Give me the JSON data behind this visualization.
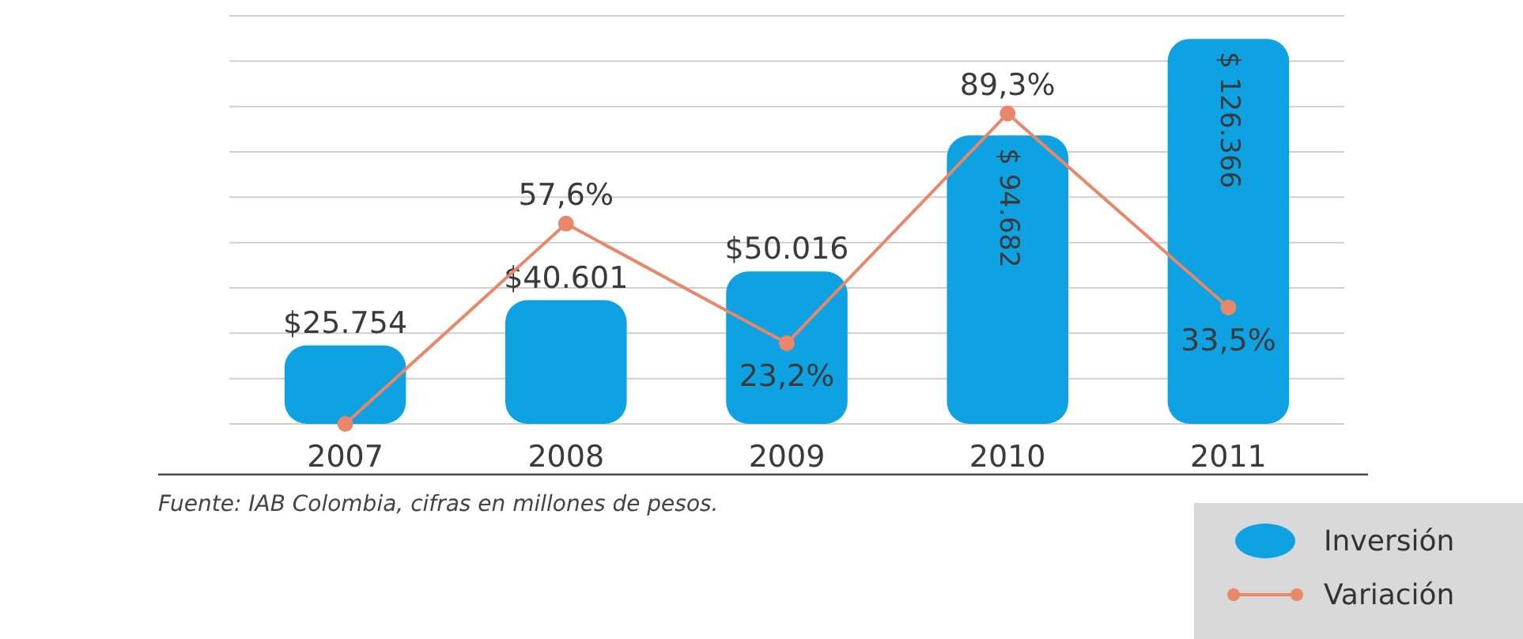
{
  "chart_data": {
    "type": "bar",
    "categories": [
      "2007",
      "2008",
      "2009",
      "2010",
      "2011"
    ],
    "series": [
      {
        "name": "Inversión",
        "color": "#0ea2e2",
        "values": [
          25754,
          40601,
          50016,
          94682,
          126366
        ],
        "value_labels": [
          "$25.754",
          "$40.601",
          "$50.016",
          "$ 94.682",
          "$ 126.366"
        ]
      },
      {
        "name": "Variación",
        "type": "line",
        "axis": "y2",
        "color": "#e8876a",
        "values": [
          0,
          57.6,
          23.2,
          89.3,
          33.5
        ],
        "value_labels": [
          null,
          "57,6%",
          "23,2%",
          "89,3%",
          "33,5%"
        ]
      }
    ],
    "marker": "circle",
    "grid": true,
    "legend": "bottom right",
    "tick_labels": "x",
    "annotations": [
      "Fuente: IAB Colombia, cifras en millones de pesos."
    ]
  }
}
